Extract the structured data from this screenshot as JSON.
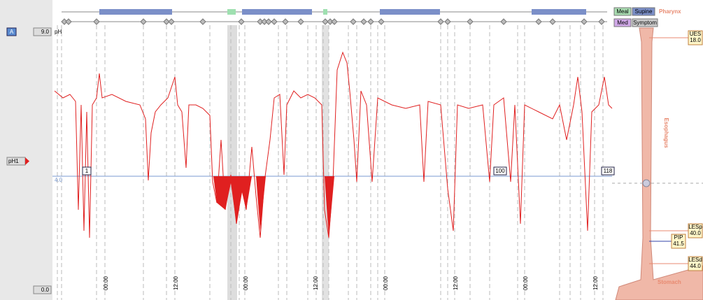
{
  "toolbar": {
    "channel_button": "A",
    "top_value": "9.0",
    "bottom_value": "0.0",
    "unit": "pH",
    "channel_label": "pH1",
    "threshold": "4.0"
  },
  "markers": [
    "1",
    "100",
    "118"
  ],
  "time_labels": [
    "00:00",
    "12:00",
    "00:00",
    "12:00",
    "00:00",
    "12:00",
    "00:00",
    "12:00"
  ],
  "legend": {
    "meal": "Meal",
    "supine": "Supine",
    "med": "Med",
    "symptom": "Symptom"
  },
  "anatomy": {
    "pharynx": "Pharynx",
    "esophagus": "Esophagus",
    "stomach": "Stomach",
    "sensors": [
      {
        "name": "UES",
        "value": "18.0"
      },
      {
        "name": "LESp",
        "value": "40.0"
      },
      {
        "name": "PIP",
        "value": "41.5"
      },
      {
        "name": "LESd",
        "value": "44.0"
      }
    ]
  }
}
